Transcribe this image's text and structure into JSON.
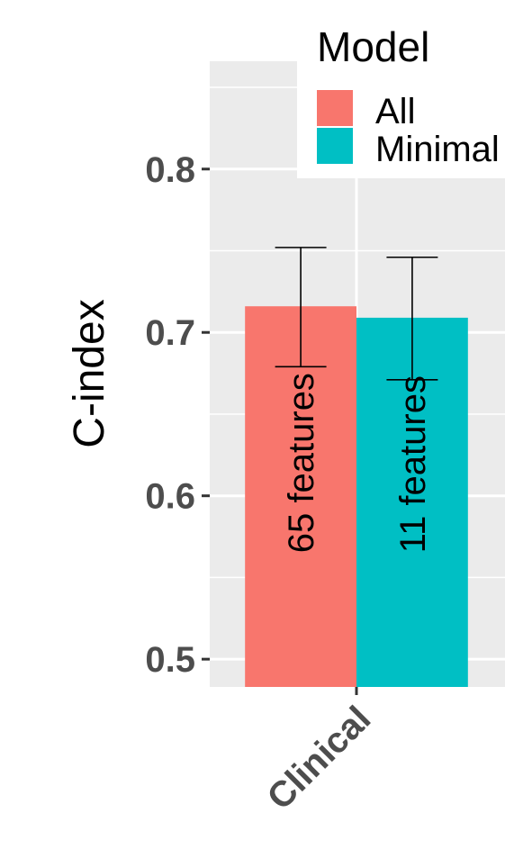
{
  "chart_data": {
    "type": "bar",
    "categories": [
      "Clinical"
    ],
    "series": [
      {
        "name": "All",
        "values": [
          0.716
        ],
        "error_low": [
          0.679
        ],
        "error_high": [
          0.752
        ],
        "label": "65  features",
        "color": "#F8766D"
      },
      {
        "name": "Minimal",
        "values": [
          0.709
        ],
        "error_low": [
          0.671
        ],
        "error_high": [
          0.746
        ],
        "label": "11  features",
        "color": "#00BFC4"
      }
    ],
    "ylabel": "C-index",
    "xlabel": "",
    "yticks": [
      "0.5",
      "0.6",
      "0.7",
      "0.8"
    ],
    "ylim": [
      0.483,
      0.866
    ],
    "legend_title": "Model",
    "legend_position": "top-right",
    "grid": true,
    "panel_color": "#EBEBEB"
  }
}
